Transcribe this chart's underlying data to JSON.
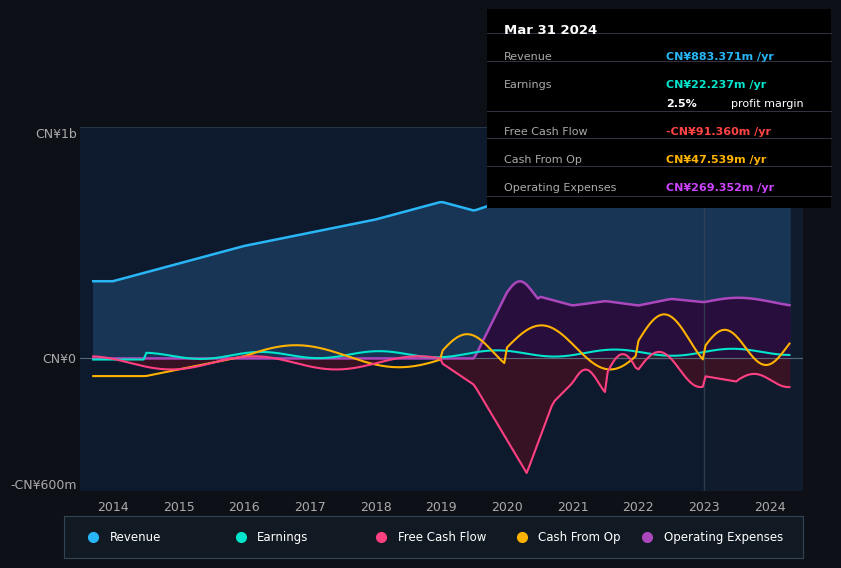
{
  "bg_color": "#0d1117",
  "plot_bg_color": "#0d1a2e",
  "title_box": {
    "date": "Mar 31 2024",
    "rows": [
      {
        "label": "Revenue",
        "value": "CN¥883.371m /yr",
        "value_color": "#29b6f6"
      },
      {
        "label": "Earnings",
        "value": "CN¥22.237m /yr",
        "value_color": "#00e5cc"
      },
      {
        "label": "",
        "value": "2.5% profit margin",
        "value_color": "#ffffff",
        "bold_part": "2.5%"
      },
      {
        "label": "Free Cash Flow",
        "value": "-CN¥91.360m /yr",
        "value_color": "#ff4444"
      },
      {
        "label": "Cash From Op",
        "value": "CN¥47.539m /yr",
        "value_color": "#ffb300"
      },
      {
        "label": "Operating Expenses",
        "value": "CN¥269.352m /yr",
        "value_color": "#cc44ff"
      }
    ]
  },
  "ylabel_top": "CN¥1b",
  "ylabel_zero": "CN¥0",
  "ylabel_bottom": "-CN¥600m",
  "ylim": [
    -600,
    1050
  ],
  "xlim": [
    2013.5,
    2024.5
  ],
  "x_ticks": [
    2014,
    2015,
    2016,
    2017,
    2018,
    2019,
    2020,
    2021,
    2022,
    2023,
    2024
  ],
  "series": {
    "revenue": {
      "color": "#29b6f6",
      "fill_color": "#1a3a5c",
      "label": "Revenue"
    },
    "earnings": {
      "color": "#00e5cc",
      "fill_color": "#0a2a2a",
      "label": "Earnings"
    },
    "free_cash_flow": {
      "color": "#ff4081",
      "fill_color": "#3a1a2a",
      "label": "Free Cash Flow"
    },
    "cash_from_op": {
      "color": "#ffb300",
      "fill_color": "#2a1a00",
      "label": "Cash From Op"
    },
    "operating_expenses": {
      "color": "#ab47bc",
      "fill_color": "#2a0a3a",
      "label": "Operating Expenses"
    }
  },
  "legend": [
    {
      "label": "Revenue",
      "color": "#29b6f6"
    },
    {
      "label": "Earnings",
      "color": "#00e5cc"
    },
    {
      "label": "Free Cash Flow",
      "color": "#ff4081"
    },
    {
      "label": "Cash From Op",
      "color": "#ffb300"
    },
    {
      "label": "Operating Expenses",
      "color": "#ab47bc"
    }
  ],
  "vertical_line_x": 2023.0
}
